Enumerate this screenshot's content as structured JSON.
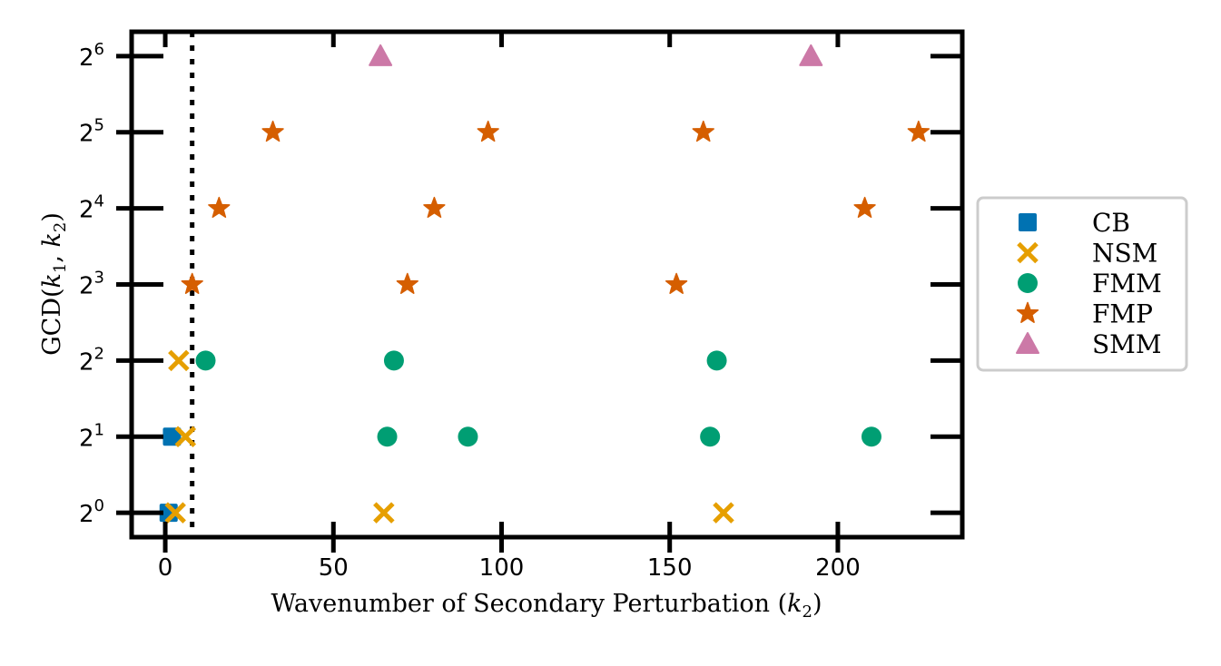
{
  "chart_data": {
    "type": "scatter",
    "xlabel": "Wavenumber of Secondary Perturbation (k2)",
    "xlabel_parts": {
      "text": "Wavenumber of Secondary Perturbation (",
      "var": "k",
      "sub": "2",
      "close": ")"
    },
    "ylabel": "GCD(k1, k2)",
    "ylabel_parts": {
      "prefix": "GCD(",
      "var1": "k",
      "sub1": "1",
      "sep": ", ",
      "var2": "k",
      "sub2": "2",
      "close": ")"
    },
    "xlim": [
      -10,
      237
    ],
    "ylim_log2": [
      -0.32,
      6.32
    ],
    "yscale": "log2",
    "xticks": [
      0,
      50,
      100,
      150,
      200
    ],
    "yticks_exp": [
      0,
      1,
      2,
      3,
      4,
      5,
      6
    ],
    "ytick_base": "2",
    "vline": {
      "x": 8,
      "style": "dotted",
      "color": "#000000"
    },
    "legend_position": "outside-right",
    "series": [
      {
        "name": "CB",
        "marker": "square",
        "color": "#0072b2",
        "points": [
          [
            1,
            1
          ],
          [
            2,
            2
          ]
        ]
      },
      {
        "name": "NSM",
        "marker": "x",
        "color": "#e69f00",
        "points": [
          [
            3,
            1
          ],
          [
            65,
            1
          ],
          [
            166,
            1
          ],
          [
            6,
            2
          ],
          [
            4,
            4
          ]
        ]
      },
      {
        "name": "FMM",
        "marker": "circle",
        "color": "#009e73",
        "points": [
          [
            66,
            2
          ],
          [
            90,
            2
          ],
          [
            162,
            2
          ],
          [
            210,
            2
          ],
          [
            12,
            4
          ],
          [
            68,
            4
          ],
          [
            164,
            4
          ]
        ]
      },
      {
        "name": "FMP",
        "marker": "star",
        "color": "#d55e00",
        "points": [
          [
            8,
            8
          ],
          [
            72,
            8
          ],
          [
            152,
            8
          ],
          [
            16,
            16
          ],
          [
            80,
            16
          ],
          [
            208,
            16
          ],
          [
            32,
            32
          ],
          [
            96,
            32
          ],
          [
            160,
            32
          ],
          [
            224,
            32
          ]
        ]
      },
      {
        "name": "SMM",
        "marker": "triangle",
        "color": "#cc79a7",
        "points": [
          [
            64,
            64
          ],
          [
            192,
            64
          ]
        ]
      }
    ]
  }
}
